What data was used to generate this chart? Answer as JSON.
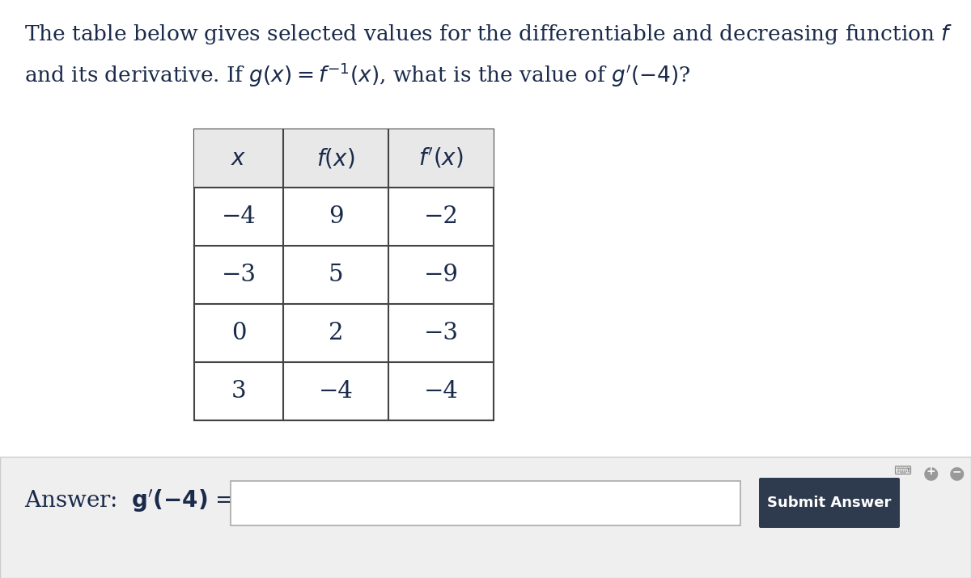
{
  "bg_color": "#ffffff",
  "text_color": "#1a2a4a",
  "table_header_bg": "#e8e8e8",
  "table_border_color": "#444444",
  "answer_bg_color": "#efefef",
  "answer_border_color": "#cccccc",
  "input_box_color": "#ffffff",
  "input_border_color": "#aaaaaa",
  "submit_bg": "#2e3a4e",
  "submit_text_color": "#ffffff",
  "table_data": [
    [
      "−4",
      "9",
      "−2"
    ],
    [
      "−3",
      "5",
      "−9"
    ],
    [
      "0",
      "2",
      "−3"
    ],
    [
      "3",
      "−4",
      "−4"
    ]
  ],
  "font_size_title": 19,
  "font_size_table_header": 20,
  "font_size_table_data": 21,
  "font_size_answer": 20,
  "font_size_submit": 13
}
